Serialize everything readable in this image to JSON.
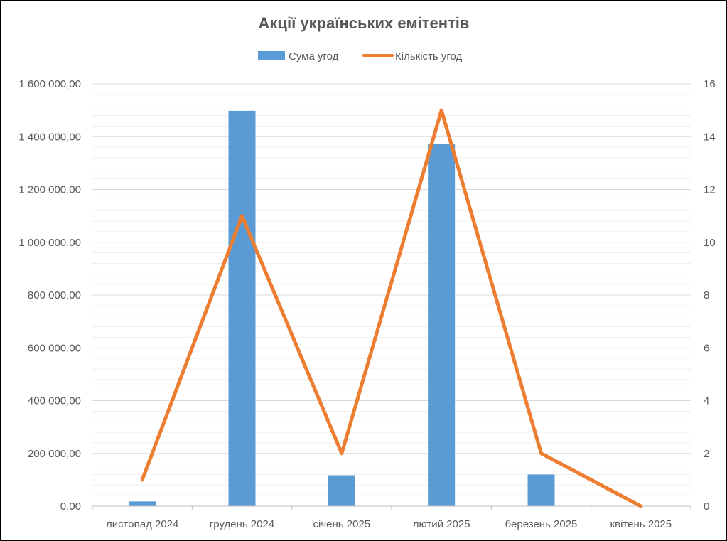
{
  "chart_data": {
    "type": "bar",
    "title": "Акції українських емітентів",
    "categories": [
      "листопад 2024",
      "грудень 2024",
      "січень 2025",
      "лютий 2025",
      "березень 2025",
      "квітень 2025"
    ],
    "series": [
      {
        "name": "Сума угод",
        "type": "bar",
        "axis": "left",
        "color": "#5b9bd5",
        "values": [
          18000,
          1498000,
          117000,
          1373000,
          120000,
          0
        ]
      },
      {
        "name": "Кількість угод",
        "type": "line",
        "axis": "right",
        "color": "#ed7d31",
        "values": [
          1,
          11,
          2,
          15,
          2,
          0
        ]
      }
    ],
    "y_left": {
      "min": 0,
      "max": 1600000,
      "major_step": 200000,
      "minor_step": 40000,
      "tick_labels": [
        "0,00",
        "200 000,00",
        "400 000,00",
        "600 000,00",
        "800 000,00",
        "1 000 000,00",
        "1 200 000,00",
        "1 400 000,00",
        "1 600 000,00"
      ]
    },
    "y_right": {
      "min": 0,
      "max": 16,
      "major_step": 2,
      "tick_labels": [
        "0",
        "2",
        "4",
        "6",
        "8",
        "10",
        "12",
        "14",
        "16"
      ]
    },
    "xlabel": "",
    "ylabel": "",
    "grid": true,
    "legend": "top-center"
  }
}
